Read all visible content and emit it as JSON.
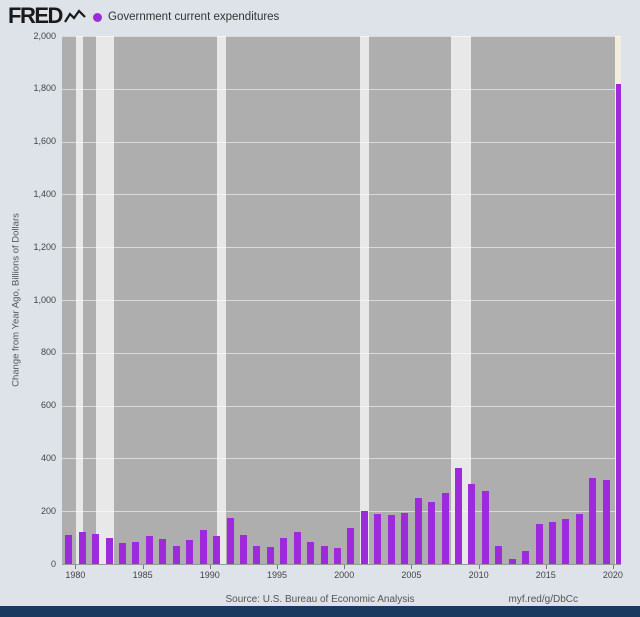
{
  "header": {
    "logo_text": "FRED",
    "legend": {
      "marker_color": "#9d2bdb",
      "label": "Government current expenditures"
    }
  },
  "footer": {
    "source": "Source: U.S. Bureau of Economic Analysis",
    "link": "myf.red/g/DbCc"
  },
  "colors": {
    "page_bg": "#dde3e9",
    "plot_bg": "#aeaeae",
    "recession_band": "#e8e8e8",
    "bar": "#9d2bdb",
    "bottom_bar": "#1b3a5f",
    "axis_text": "#444444",
    "footer_text": "#555555"
  },
  "chart_data": {
    "type": "bar",
    "title": "Government current expenditures",
    "xlabel": "",
    "ylabel": "Change from Year Ago, Billions of Dollars",
    "legend_position": "top-left",
    "grid": "horizontal",
    "ylim": [
      0,
      2000
    ],
    "xlim": [
      1979.0,
      2020.6
    ],
    "y_ticks": [
      0,
      200,
      400,
      600,
      800,
      1000,
      1200,
      1400,
      1600,
      1800,
      2000
    ],
    "y_tick_labels": [
      "0",
      "200",
      "400",
      "600",
      "800",
      "1,000",
      "1,200",
      "1,400",
      "1,600",
      "1,800",
      "2,000"
    ],
    "x_ticks": [
      1980,
      1985,
      1990,
      1995,
      2000,
      2005,
      2010,
      2015,
      2020
    ],
    "x_tick_labels": [
      "1980",
      "1985",
      "1990",
      "1995",
      "2000",
      "2005",
      "2010",
      "2015",
      "2020"
    ],
    "bar_color": "#9d2bdb",
    "plot_bg": "#aeaeae",
    "recession_band_color": "#e8e8e8",
    "recession_bands": [
      {
        "start": 1980.04,
        "end": 1980.54
      },
      {
        "start": 1981.54,
        "end": 1982.87
      },
      {
        "start": 1990.54,
        "end": 1991.21
      },
      {
        "start": 2001.21,
        "end": 2001.87
      },
      {
        "start": 2007.92,
        "end": 2009.45
      },
      {
        "start": 2020.12,
        "end": 2020.6,
        "color": "#f3eedb"
      }
    ],
    "categories": [
      1979,
      1980,
      1981,
      1982,
      1983,
      1984,
      1985,
      1986,
      1987,
      1988,
      1989,
      1990,
      1991,
      1992,
      1993,
      1994,
      1995,
      1996,
      1997,
      1998,
      1999,
      2000,
      2001,
      2002,
      2003,
      2004,
      2005,
      2006,
      2007,
      2008,
      2009,
      2010,
      2011,
      2012,
      2013,
      2014,
      2015,
      2016,
      2017,
      2018,
      2019,
      2020
    ],
    "values": [
      110,
      120,
      115,
      100,
      80,
      85,
      105,
      95,
      70,
      90,
      130,
      105,
      175,
      110,
      70,
      65,
      100,
      120,
      85,
      70,
      60,
      135,
      200,
      190,
      185,
      195,
      250,
      235,
      270,
      365,
      305,
      275,
      70,
      20,
      50,
      150,
      160,
      170,
      190,
      325,
      320,
      1820
    ]
  }
}
